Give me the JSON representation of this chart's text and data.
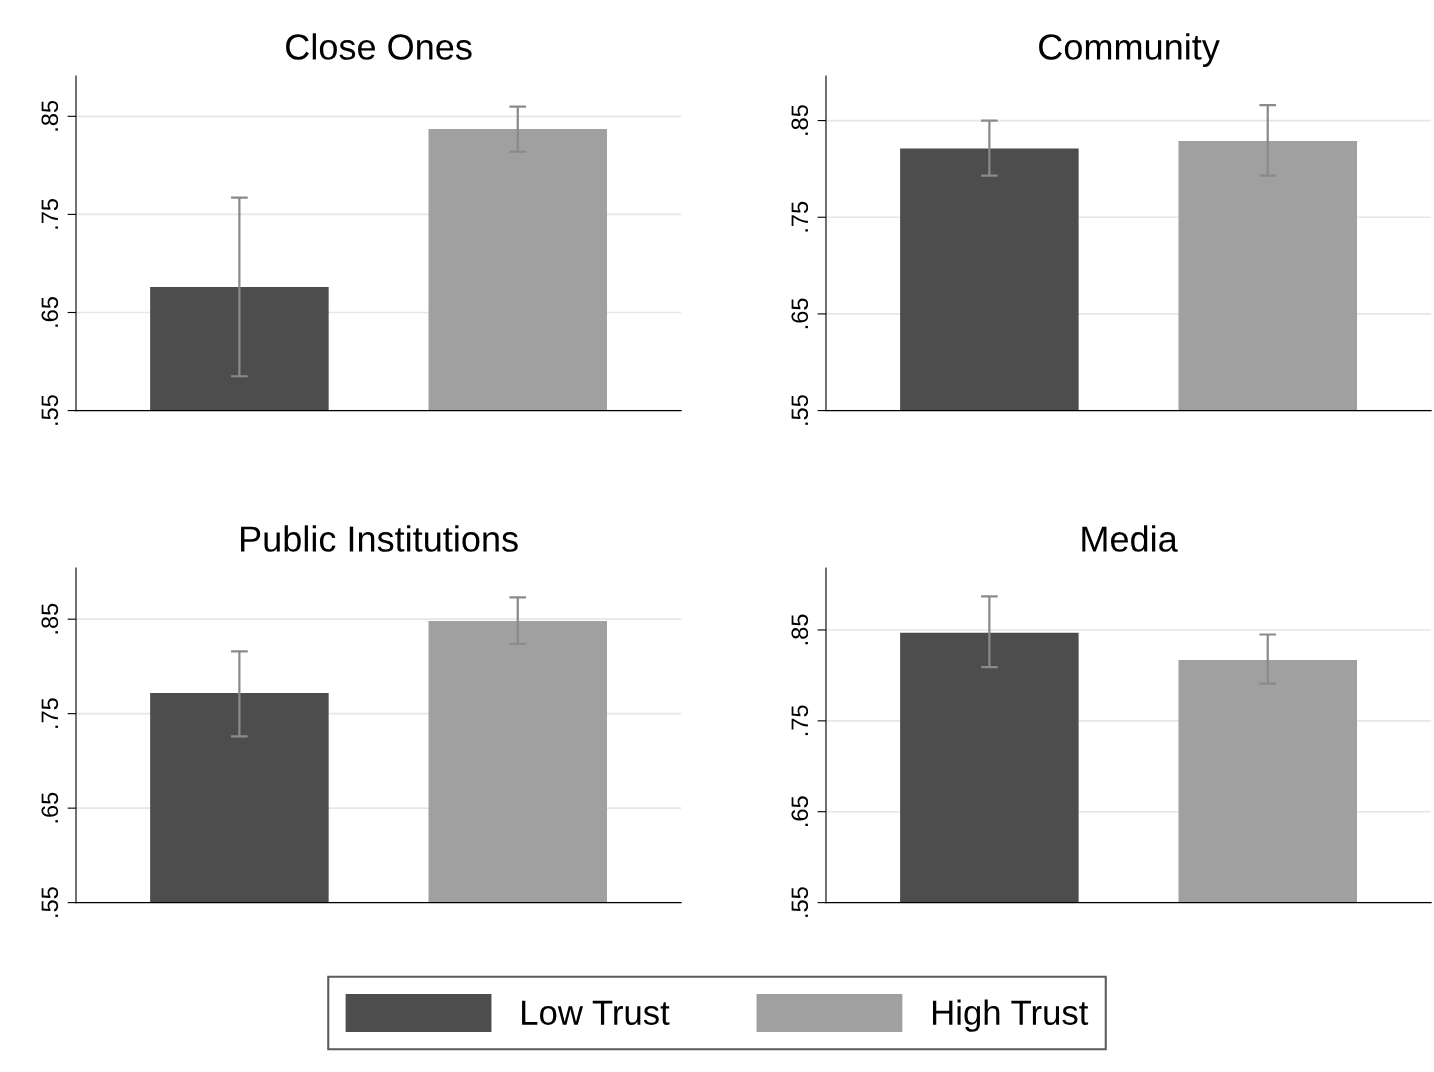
{
  "chart_data": [
    {
      "type": "bar",
      "title": "Close Ones",
      "categories": [
        null
      ],
      "legend": "bottom",
      "ylim": [
        0.55,
        0.891
      ],
      "yticks": [
        {
          "value": 0.55,
          "label": ".55"
        },
        {
          "value": 0.65,
          "label": ".65"
        },
        {
          "value": 0.75,
          "label": ".75"
        },
        {
          "value": 0.85,
          "label": ".85"
        }
      ],
      "grid": "y",
      "series": [
        {
          "name": "Low Trust",
          "color": "#4d4d4d",
          "values": [
            0.676
          ],
          "errors": [
            [
              0.585,
              0.767
            ]
          ]
        },
        {
          "name": "High Trust",
          "color": "#a0a0a0",
          "values": [
            0.837
          ],
          "errors": [
            [
              0.814,
              0.86
            ]
          ]
        }
      ]
    },
    {
      "type": "bar",
      "title": "Community",
      "categories": [
        null
      ],
      "ylim": [
        0.55,
        0.896
      ],
      "yticks": [
        {
          "value": 0.55,
          "label": ".55"
        },
        {
          "value": 0.65,
          "label": ".65"
        },
        {
          "value": 0.75,
          "label": ".75"
        },
        {
          "value": 0.85,
          "label": ".85"
        }
      ],
      "grid": "y",
      "series": [
        {
          "color": "#4d4d4d",
          "values": [
            0.821
          ],
          "errors": [
            [
              0.793,
              0.85
            ]
          ]
        },
        {
          "color": "#a0a0a0",
          "values": [
            0.829
          ],
          "errors": [
            [
              0.793,
              0.866
            ]
          ]
        }
      ]
    },
    {
      "type": "bar",
      "title": "Public Institutions",
      "categories": [
        null
      ],
      "ylim": [
        0.55,
        0.904
      ],
      "yticks": [
        {
          "value": 0.55,
          "label": ".55"
        },
        {
          "value": 0.65,
          "label": ".65"
        },
        {
          "value": 0.75,
          "label": ".75"
        },
        {
          "value": 0.85,
          "label": ".85"
        }
      ],
      "grid": "y",
      "series": [
        {
          "color": "#4d4d4d",
          "values": [
            0.772
          ],
          "errors": [
            [
              0.726,
              0.816
            ]
          ]
        },
        {
          "color": "#a0a0a0",
          "values": [
            0.848
          ],
          "errors": [
            [
              0.824,
              0.873
            ]
          ]
        }
      ]
    },
    {
      "type": "bar",
      "title": "Media",
      "categories": [
        null
      ],
      "ylim": [
        0.55,
        0.918
      ],
      "yticks": [
        {
          "value": 0.55,
          "label": ".55"
        },
        {
          "value": 0.65,
          "label": ".65"
        },
        {
          "value": 0.75,
          "label": ".75"
        },
        {
          "value": 0.85,
          "label": ".85"
        }
      ],
      "grid": "y",
      "series": [
        {
          "color": "#4d4d4d",
          "values": [
            0.847
          ],
          "errors": [
            [
              0.809,
              0.887
            ]
          ]
        },
        {
          "color": "#a0a0a0",
          "values": [
            0.817
          ],
          "errors": [
            [
              0.791,
              0.845
            ]
          ]
        }
      ]
    }
  ]
}
